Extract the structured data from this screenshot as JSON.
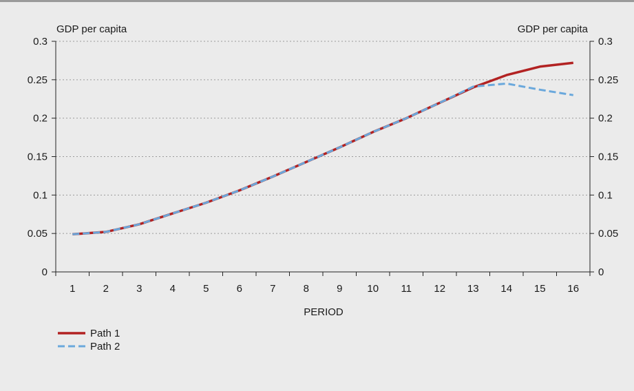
{
  "chart_data": {
    "type": "line",
    "y_left_label": "GDP per capita",
    "y_right_label": "GDP per capita",
    "xlabel": "PERIOD",
    "x": [
      1,
      2,
      3,
      4,
      5,
      6,
      7,
      8,
      9,
      10,
      11,
      12,
      13,
      14,
      15,
      16
    ],
    "ylim": [
      0,
      0.3
    ],
    "yticks": [
      "0",
      "0.05",
      "0.1",
      "0.15",
      "0.2",
      "0.25",
      "0.3"
    ],
    "grid": "horizontal-dotted",
    "legend_position": "bottom-left",
    "series": [
      {
        "name": "Path 1",
        "color": "#b22222",
        "style": "solid",
        "values": [
          0.049,
          0.052,
          0.062,
          0.076,
          0.09,
          0.106,
          0.124,
          0.143,
          0.162,
          0.182,
          0.2,
          0.22,
          0.24,
          0.256,
          0.267,
          0.272
        ]
      },
      {
        "name": "Path 2",
        "color": "#6aa8dc",
        "style": "dashed",
        "values": [
          0.049,
          0.052,
          0.062,
          0.076,
          0.09,
          0.106,
          0.124,
          0.143,
          0.162,
          0.182,
          0.2,
          0.22,
          0.241,
          0.245,
          0.237,
          0.23
        ]
      }
    ]
  }
}
